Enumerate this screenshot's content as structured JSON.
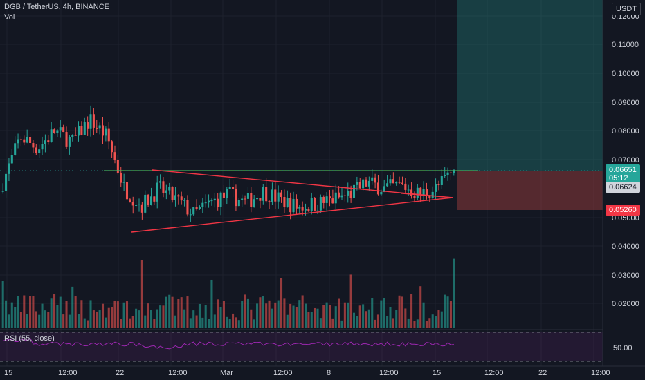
{
  "header": {
    "symbol": "DGB / TetherUS, 4h, BINANCE",
    "volume_label": "Vol",
    "currency": "USDT",
    "rsi_label": "RSI (55, close)"
  },
  "colors": {
    "background": "#131722",
    "up": "#26a69a",
    "down": "#ef5350",
    "grid": "#1e222d",
    "trendline": "#f23645",
    "resistance": "#4caf50",
    "rsi": "#9c27b0",
    "target_zone": "#26a69a",
    "stop_zone": "#ef5350"
  },
  "price_axis": {
    "ticks": [
      "0.12000",
      "0.11000",
      "0.10000",
      "0.09000",
      "0.08000",
      "0.07000",
      "0.05000",
      "0.04000",
      "0.03000",
      "0.02000"
    ],
    "current_price": "0.06651",
    "countdown": "05:12",
    "marker_price": "0.06624",
    "stop_price": "0.05260"
  },
  "rsi_axis": {
    "ticks": [
      "50.00"
    ]
  },
  "time_axis": {
    "ticks": [
      "15",
      "12:00",
      "22",
      "12:00",
      "Mar",
      "12:00",
      "8",
      "12:00",
      "15",
      "12:00",
      "22",
      "12:00"
    ]
  },
  "chart_data": {
    "type": "candlestick",
    "title": "DGB / TetherUS, 4h, BINANCE",
    "price_range": [
      0.01,
      0.124
    ],
    "current_price": 0.06651,
    "take_profit_zone": [
      0.06651,
      0.124
    ],
    "stop_zone": [
      0.0526,
      0.06651
    ],
    "resistance_line": 0.06651,
    "triangle": {
      "upper": [
        [
          "2021-02-24 00:00",
          0.0665
        ],
        [
          "2021-03-17 08:00",
          0.0552
        ]
      ],
      "lower": [
        [
          "2021-02-23 00:00",
          0.045
        ],
        [
          "2021-03-17 08:00",
          0.0552
        ]
      ]
    },
    "rsi": {
      "period": 55,
      "levels": [
        70,
        50,
        30
      ]
    },
    "candles_sketch": [
      {
        "t": "2021-02-15",
        "o": 0.059,
        "h": 0.064,
        "l": 0.05,
        "c": 0.062
      },
      {
        "t": "2021-02-16",
        "o": 0.062,
        "h": 0.086,
        "l": 0.06,
        "c": 0.078
      },
      {
        "t": "2021-02-17",
        "o": 0.078,
        "h": 0.083,
        "l": 0.07,
        "c": 0.074
      },
      {
        "t": "2021-02-18",
        "o": 0.074,
        "h": 0.087,
        "l": 0.072,
        "c": 0.08
      },
      {
        "t": "2021-02-19",
        "o": 0.08,
        "h": 0.082,
        "l": 0.072,
        "c": 0.076
      },
      {
        "t": "2021-02-20",
        "o": 0.076,
        "h": 0.09,
        "l": 0.074,
        "c": 0.084
      },
      {
        "t": "2021-02-21",
        "o": 0.084,
        "h": 0.086,
        "l": 0.074,
        "c": 0.078
      },
      {
        "t": "2021-02-22",
        "o": 0.078,
        "h": 0.08,
        "l": 0.052,
        "c": 0.06
      },
      {
        "t": "2021-02-23",
        "o": 0.06,
        "h": 0.064,
        "l": 0.048,
        "c": 0.054
      },
      {
        "t": "2021-02-24",
        "o": 0.054,
        "h": 0.064,
        "l": 0.052,
        "c": 0.06
      },
      {
        "t": "2021-02-25",
        "o": 0.06,
        "h": 0.062,
        "l": 0.053,
        "c": 0.056
      },
      {
        "t": "2021-02-26",
        "o": 0.056,
        "h": 0.058,
        "l": 0.049,
        "c": 0.051
      },
      {
        "t": "2021-02-27",
        "o": 0.051,
        "h": 0.057,
        "l": 0.048,
        "c": 0.055
      },
      {
        "t": "2021-02-28",
        "o": 0.055,
        "h": 0.06,
        "l": 0.053,
        "c": 0.058
      },
      {
        "t": "2021-03-01",
        "o": 0.058,
        "h": 0.06,
        "l": 0.052,
        "c": 0.055
      },
      {
        "t": "2021-03-02",
        "o": 0.055,
        "h": 0.061,
        "l": 0.054,
        "c": 0.059
      },
      {
        "t": "2021-03-03",
        "o": 0.059,
        "h": 0.062,
        "l": 0.055,
        "c": 0.056
      },
      {
        "t": "2021-03-05",
        "o": 0.056,
        "h": 0.057,
        "l": 0.052,
        "c": 0.0535
      },
      {
        "t": "2021-03-07",
        "o": 0.0535,
        "h": 0.056,
        "l": 0.052,
        "c": 0.0545
      },
      {
        "t": "2021-03-09",
        "o": 0.0545,
        "h": 0.057,
        "l": 0.053,
        "c": 0.056
      },
      {
        "t": "2021-03-11",
        "o": 0.056,
        "h": 0.06,
        "l": 0.054,
        "c": 0.058
      },
      {
        "t": "2021-03-12",
        "o": 0.058,
        "h": 0.064,
        "l": 0.056,
        "c": 0.062
      },
      {
        "t": "2021-03-13",
        "o": 0.062,
        "h": 0.065,
        "l": 0.058,
        "c": 0.06
      },
      {
        "t": "2021-03-14",
        "o": 0.06,
        "h": 0.064,
        "l": 0.057,
        "c": 0.061
      },
      {
        "t": "2021-03-15",
        "o": 0.061,
        "h": 0.063,
        "l": 0.053,
        "c": 0.058
      },
      {
        "t": "2021-03-16",
        "o": 0.058,
        "h": 0.063,
        "l": 0.055,
        "c": 0.06
      },
      {
        "t": "2021-03-17",
        "o": 0.06,
        "h": 0.0668,
        "l": 0.058,
        "c": 0.0665
      }
    ]
  }
}
